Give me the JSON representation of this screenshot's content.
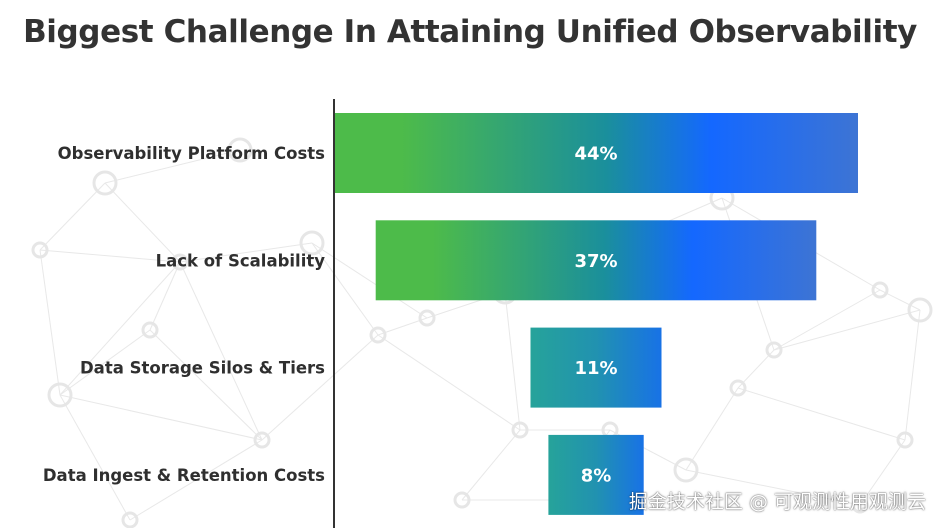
{
  "chart_data": {
    "type": "bar",
    "orientation": "horizontal",
    "style": "funnel (bars centered)",
    "title": "Biggest Challenge In Attaining Unified Observability",
    "categories": [
      "Observability Platform Costs",
      "Lack of Scalability",
      "Data Storage Silos & Tiers",
      "Data Ingest & Retention Costs"
    ],
    "values": [
      44,
      37,
      11,
      8
    ],
    "value_labels": [
      "44%",
      "37%",
      "11%",
      "8%"
    ],
    "unit": "%",
    "grid": false,
    "legend": "none"
  },
  "colors": {
    "title": "#333333",
    "label": "#2f2f2f",
    "bar_green": "#4dbb4a",
    "bar_teal": "#26a09a",
    "bar_blue": "#1a6cff",
    "bar_steel": "#3d74d4",
    "axis": "#333333",
    "background": "#ffffff"
  },
  "watermark": "掘金技术社区 @ 可观测性用观测云"
}
